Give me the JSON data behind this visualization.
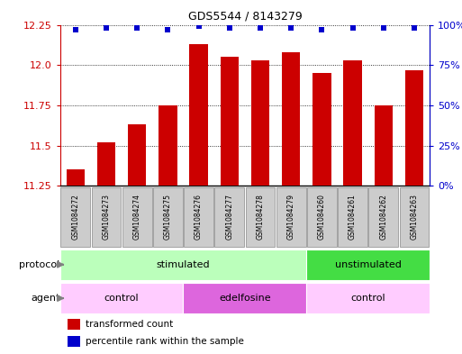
{
  "title": "GDS5544 / 8143279",
  "samples": [
    "GSM1084272",
    "GSM1084273",
    "GSM1084274",
    "GSM1084275",
    "GSM1084276",
    "GSM1084277",
    "GSM1084278",
    "GSM1084279",
    "GSM1084260",
    "GSM1084261",
    "GSM1084262",
    "GSM1084263"
  ],
  "bar_values": [
    11.35,
    11.52,
    11.63,
    11.75,
    12.13,
    12.05,
    12.03,
    12.08,
    11.95,
    12.03,
    11.75,
    11.97
  ],
  "percentile_values": [
    97,
    98,
    98,
    97,
    99,
    98,
    98,
    98,
    97,
    98,
    98,
    98
  ],
  "bar_color": "#cc0000",
  "percentile_color": "#0000cc",
  "ylim_left": [
    11.25,
    12.25
  ],
  "ylim_right": [
    0,
    100
  ],
  "yticks_left": [
    11.25,
    11.5,
    11.75,
    12.0,
    12.25
  ],
  "yticks_right": [
    0,
    25,
    50,
    75,
    100
  ],
  "ytick_labels_right": [
    "0%",
    "25%",
    "50%",
    "75%",
    "100%"
  ],
  "protocol_groups": [
    {
      "label": "stimulated",
      "start": 0,
      "end": 7,
      "color": "#bbffbb"
    },
    {
      "label": "unstimulated",
      "start": 8,
      "end": 11,
      "color": "#44dd44"
    }
  ],
  "agent_groups": [
    {
      "label": "control",
      "start": 0,
      "end": 3,
      "color": "#ffccff"
    },
    {
      "label": "edelfosine",
      "start": 4,
      "end": 7,
      "color": "#dd66dd"
    },
    {
      "label": "control",
      "start": 8,
      "end": 11,
      "color": "#ffccff"
    }
  ],
  "sample_box_color": "#cccccc",
  "sample_box_edge": "#888888",
  "legend_red_label": "transformed count",
  "legend_blue_label": "percentile rank within the sample",
  "label_protocol": "protocol",
  "label_agent": "agent"
}
